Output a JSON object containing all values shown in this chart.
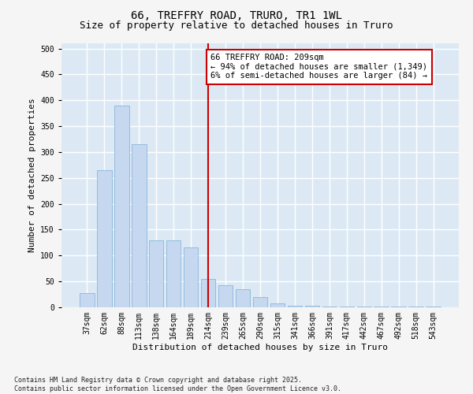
{
  "title_line1": "66, TREFFRY ROAD, TRURO, TR1 1WL",
  "title_line2": "Size of property relative to detached houses in Truro",
  "xlabel": "Distribution of detached houses by size in Truro",
  "ylabel": "Number of detached properties",
  "footnote": "Contains HM Land Registry data © Crown copyright and database right 2025.\nContains public sector information licensed under the Open Government Licence v3.0.",
  "categories": [
    "37sqm",
    "62sqm",
    "88sqm",
    "113sqm",
    "138sqm",
    "164sqm",
    "189sqm",
    "214sqm",
    "239sqm",
    "265sqm",
    "290sqm",
    "315sqm",
    "341sqm",
    "366sqm",
    "391sqm",
    "417sqm",
    "442sqm",
    "467sqm",
    "492sqm",
    "518sqm",
    "543sqm"
  ],
  "values": [
    28,
    265,
    390,
    315,
    130,
    130,
    115,
    55,
    42,
    35,
    20,
    8,
    3,
    3,
    2,
    2,
    2,
    2,
    2,
    2,
    2
  ],
  "bar_color": "#c5d8f0",
  "bar_edge_color": "#7aadd4",
  "vline_x_idx": 7,
  "vline_color": "#cc0000",
  "annotation_text": "66 TREFFRY ROAD: 209sqm\n← 94% of detached houses are smaller (1,349)\n6% of semi-detached houses are larger (84) →",
  "annotation_box_color": "#ffffff",
  "annotation_box_edge": "#cc0000",
  "ylim": [
    0,
    510
  ],
  "yticks": [
    0,
    50,
    100,
    150,
    200,
    250,
    300,
    350,
    400,
    450,
    500
  ],
  "fig_bg_color": "#f5f5f5",
  "plot_bg_color": "#dce9f5",
  "grid_color": "#ffffff",
  "title_fontsize": 10,
  "subtitle_fontsize": 9,
  "axis_label_fontsize": 8,
  "tick_fontsize": 7,
  "annotation_fontsize": 7.5
}
